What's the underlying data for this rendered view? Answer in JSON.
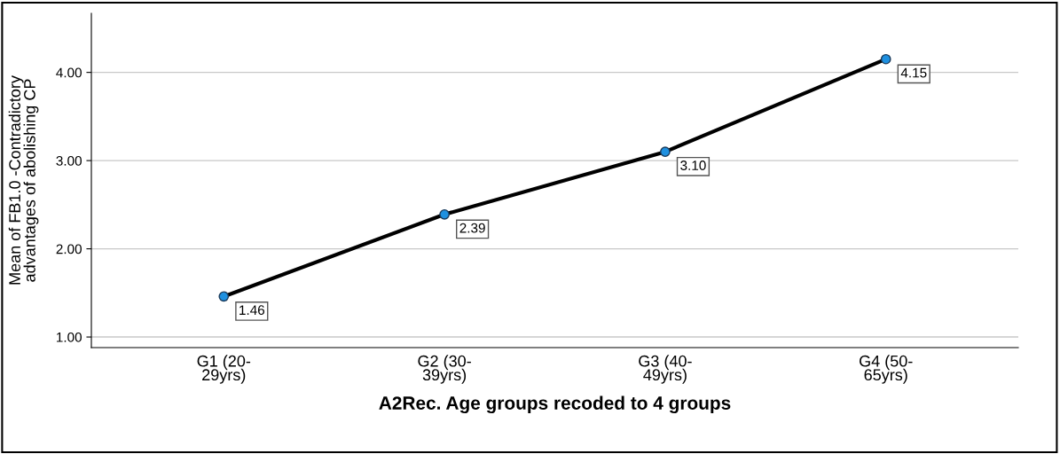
{
  "chart_data": {
    "type": "line",
    "categories": [
      "G1 (20-\n29yrs)",
      "G2 (30-\n39yrs)",
      "G3 (40-\n49yrs)",
      "G4 (50-\n65yrs)"
    ],
    "series": [
      {
        "color": "#000000",
        "values": [
          1.46,
          2.39,
          3.1,
          4.15
        ],
        "value_labels": [
          "1.46",
          "2.39",
          "3.10",
          "4.15"
        ]
      }
    ],
    "xlabel": "A2Rec. Age groups recoded to 4 groups",
    "ylabel": "Mean of FB1.0 -Contradictory\nadvantages of abolishing CP",
    "ylim": [
      0.88,
      4.67
    ],
    "yticks": [
      {
        "value": 1,
        "label": "1.00"
      },
      {
        "value": 2,
        "label": "2.00"
      },
      {
        "value": 3,
        "label": "3.00"
      },
      {
        "value": 4,
        "label": "4.00"
      }
    ],
    "grid": "y",
    "marker": "circle",
    "line_style": "solid"
  }
}
